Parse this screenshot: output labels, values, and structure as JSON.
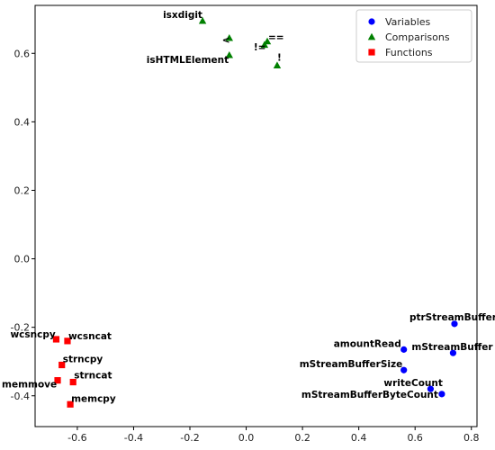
{
  "chart_data": {
    "type": "scatter",
    "xlim": [
      -0.75,
      0.82
    ],
    "ylim": [
      -0.49,
      0.74
    ],
    "x_ticks": [
      -0.6,
      -0.4,
      -0.2,
      0.0,
      0.2,
      0.4,
      0.6,
      0.8
    ],
    "y_ticks": [
      -0.4,
      -0.2,
      0.0,
      0.2,
      0.4,
      0.6
    ],
    "legend_position": "top-right",
    "grid": false,
    "series": [
      {
        "name": "Variables",
        "color": "#0000ff",
        "marker": "circle",
        "points": [
          {
            "x": 0.74,
            "y": -0.19,
            "label": "ptrStreamBuffer"
          },
          {
            "x": 0.56,
            "y": -0.265,
            "label": "amountRead"
          },
          {
            "x": 0.735,
            "y": -0.275,
            "label": "mStreamBuffer"
          },
          {
            "x": 0.56,
            "y": -0.325,
            "label": "mStreamBufferSize"
          },
          {
            "x": 0.655,
            "y": -0.38,
            "label": "writeCount"
          },
          {
            "x": 0.695,
            "y": -0.395,
            "label": "mStreamBufferByteCount"
          }
        ]
      },
      {
        "name": "Comparisons",
        "color": "#008000",
        "marker": "triangle",
        "points": [
          {
            "x": -0.155,
            "y": 0.695,
            "label": "isxdigit"
          },
          {
            "x": -0.06,
            "y": 0.645,
            "label": "<"
          },
          {
            "x": -0.06,
            "y": 0.595,
            "label": "isHTMLElement"
          },
          {
            "x": 0.065,
            "y": 0.625,
            "label": "!="
          },
          {
            "x": 0.075,
            "y": 0.635,
            "label": "=="
          },
          {
            "x": 0.11,
            "y": 0.565,
            "label": "!"
          }
        ]
      },
      {
        "name": "Functions",
        "color": "#ff0000",
        "marker": "square",
        "points": [
          {
            "x": -0.675,
            "y": -0.235,
            "label": "wcsncpy"
          },
          {
            "x": -0.635,
            "y": -0.24,
            "label": "wcsncat"
          },
          {
            "x": -0.655,
            "y": -0.31,
            "label": "strncpy"
          },
          {
            "x": -0.615,
            "y": -0.36,
            "label": "strncat"
          },
          {
            "x": -0.67,
            "y": -0.355,
            "label": "memmove"
          },
          {
            "x": -0.625,
            "y": -0.425,
            "label": "memcpy"
          }
        ]
      }
    ]
  }
}
